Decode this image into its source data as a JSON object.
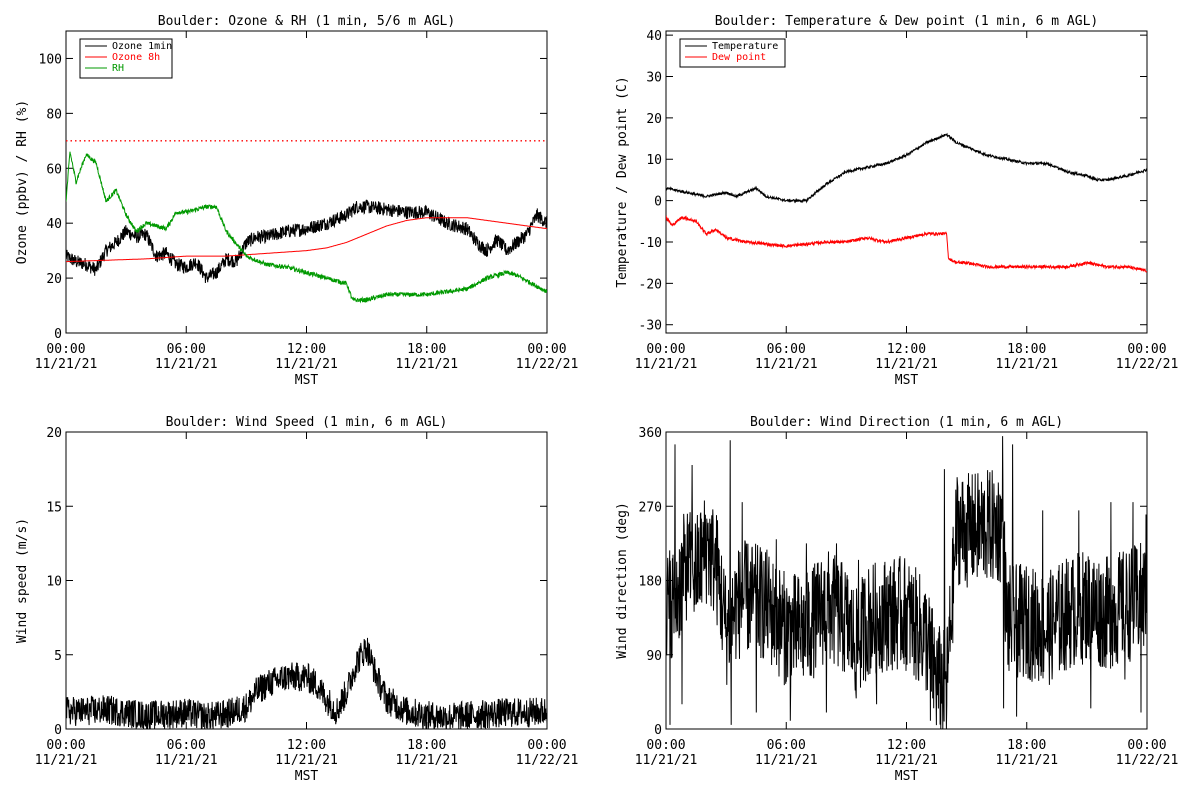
{
  "chart_data": [
    {
      "type": "line",
      "title": "Boulder: Ozone & RH (1 min, 5/6 m AGL)",
      "ylabel": "Ozone (ppbv) / RH (%)",
      "xlabel": "MST",
      "ylim": [
        0,
        110
      ],
      "yticks": [
        "0",
        "20",
        "40",
        "60",
        "80",
        "100"
      ],
      "yticks_values": [
        0,
        20,
        40,
        60,
        80,
        100
      ],
      "xticks": [
        {
          "time": "00:00",
          "date": "11/21/21"
        },
        {
          "time": "06:00",
          "date": "11/21/21"
        },
        {
          "time": "12:00",
          "date": "11/21/21"
        },
        {
          "time": "18:00",
          "date": "11/21/21"
        },
        {
          "time": "00:00",
          "date": "11/22/21"
        }
      ],
      "xlim_hours": [
        0,
        24
      ],
      "legend": {
        "placement": "top-left",
        "entries": [
          "Ozone 1min",
          "Ozone 8h",
          "RH"
        ]
      },
      "reference_line": {
        "value": 70,
        "color": "#ff0000",
        "style": "dotted"
      },
      "series": [
        {
          "name": "Ozone 1min",
          "color": "#000000",
          "noise": 2.5,
          "x": [
            0,
            0.5,
            1,
            1.5,
            2,
            2.5,
            3,
            3.5,
            4,
            4.5,
            5,
            5.5,
            6,
            6.5,
            7,
            7.5,
            8,
            8.5,
            9,
            9.5,
            10,
            11,
            12,
            13,
            14,
            14.5,
            15,
            16,
            17,
            18,
            19,
            20,
            20.5,
            21,
            21.5,
            22,
            22.5,
            23,
            23.5,
            24
          ],
          "y": [
            28,
            26,
            25,
            23,
            30,
            33,
            37,
            35,
            36,
            28,
            29,
            25,
            24,
            26,
            20,
            22,
            27,
            26,
            33,
            35,
            35,
            37,
            38,
            40,
            43,
            46,
            46,
            45,
            44,
            44,
            40,
            38,
            33,
            30,
            34,
            30,
            33,
            36,
            43,
            40
          ]
        },
        {
          "name": "Ozone 8h",
          "color": "#ff0000",
          "noise": 0,
          "x": [
            0,
            2,
            4,
            6,
            8,
            9,
            10,
            11,
            12,
            13,
            14,
            15,
            16,
            17,
            18,
            19,
            20,
            21,
            22,
            23,
            24
          ],
          "y": [
            26,
            26.5,
            27,
            28,
            28,
            28.5,
            29,
            29.5,
            30,
            31,
            33,
            36,
            39,
            41,
            42,
            42,
            42,
            41,
            40,
            39,
            38
          ]
        },
        {
          "name": "RH",
          "color": "#009900",
          "noise": 0.8,
          "x": [
            0,
            0.2,
            0.5,
            1,
            1.5,
            2,
            2.5,
            3,
            3.5,
            4,
            5,
            5.5,
            6,
            7,
            7.5,
            8,
            9,
            10,
            11,
            12,
            13,
            14,
            14.3,
            15,
            16,
            17,
            18,
            19,
            20,
            21,
            22,
            22.5,
            23,
            24
          ],
          "y": [
            48,
            66,
            55,
            65,
            62,
            48,
            52,
            43,
            37,
            40,
            38,
            44,
            44,
            46,
            46,
            37,
            28,
            25,
            24,
            22,
            20,
            18,
            12,
            12,
            14,
            14,
            14,
            15,
            16,
            20,
            22,
            21,
            19,
            15
          ]
        }
      ]
    },
    {
      "type": "line",
      "title": "Boulder: Temperature & Dew point (1 min, 6 m AGL)",
      "ylabel": "Temperature / Dew point (C)",
      "xlabel": "MST",
      "ylim": [
        -32,
        41
      ],
      "yticks": [
        "-30",
        "-20",
        "-10",
        "0",
        "10",
        "20",
        "30",
        "40"
      ],
      "yticks_values": [
        -30,
        -20,
        -10,
        0,
        10,
        20,
        30,
        40
      ],
      "xticks": [
        {
          "time": "00:00",
          "date": "11/21/21"
        },
        {
          "time": "06:00",
          "date": "11/21/21"
        },
        {
          "time": "12:00",
          "date": "11/21/21"
        },
        {
          "time": "18:00",
          "date": "11/21/21"
        },
        {
          "time": "00:00",
          "date": "11/22/21"
        }
      ],
      "xlim_hours": [
        0,
        24
      ],
      "legend": {
        "placement": "top-left",
        "entries": [
          "Temperature",
          "Dew point"
        ]
      },
      "series": [
        {
          "name": "Temperature",
          "color": "#000000",
          "noise": 0.3,
          "x": [
            0,
            1,
            2,
            3,
            3.5,
            4,
            4.5,
            5,
            6,
            7,
            7.5,
            8,
            9,
            10,
            11,
            12,
            13,
            13.5,
            14,
            14.5,
            15,
            16,
            17,
            18,
            19,
            20,
            21,
            21.5,
            22,
            23,
            24
          ],
          "y": [
            3,
            2,
            1,
            2,
            1,
            2,
            3,
            1,
            0,
            0,
            2,
            4,
            7,
            8,
            9,
            11,
            14,
            15,
            16,
            14,
            13,
            11,
            10,
            9,
            9,
            7,
            6,
            5,
            5,
            6,
            7.5
          ]
        },
        {
          "name": "Dew point",
          "color": "#ff0000",
          "noise": 0.35,
          "x": [
            0,
            0.3,
            0.8,
            1.5,
            2,
            2.5,
            3,
            4,
            6,
            8,
            9,
            10,
            11,
            12,
            13,
            14,
            14.1,
            14.5,
            15,
            16,
            17,
            18,
            19,
            20,
            21,
            22,
            23,
            24
          ],
          "y": [
            -4,
            -6,
            -4,
            -5,
            -8,
            -7,
            -9,
            -10,
            -11,
            -10,
            -10,
            -9,
            -10,
            -9,
            -8,
            -8,
            -14,
            -15,
            -15,
            -16,
            -16,
            -16,
            -16,
            -16,
            -15,
            -16,
            -16,
            -17
          ]
        }
      ]
    },
    {
      "type": "line",
      "title": "Boulder: Wind Speed (1 min, 6 m AGL)",
      "ylabel": "Wind speed (m/s)",
      "xlabel": "MST",
      "ylim": [
        0,
        20
      ],
      "yticks": [
        "0",
        "5",
        "10",
        "15",
        "20"
      ],
      "yticks_values": [
        0,
        5,
        10,
        15,
        20
      ],
      "xticks": [
        {
          "time": "00:00",
          "date": "11/21/21"
        },
        {
          "time": "06:00",
          "date": "11/21/21"
        },
        {
          "time": "12:00",
          "date": "11/21/21"
        },
        {
          "time": "18:00",
          "date": "11/21/21"
        },
        {
          "time": "00:00",
          "date": "11/22/21"
        }
      ],
      "xlim_hours": [
        0,
        24
      ],
      "series": [
        {
          "name": "",
          "color": "#000000",
          "noise": 1.0,
          "x": [
            0,
            1,
            2,
            3,
            4,
            5,
            6,
            7,
            8,
            9,
            9.5,
            10,
            11,
            12,
            12.5,
            13,
            13.5,
            14,
            14.5,
            15,
            15.5,
            16,
            17,
            18,
            19,
            20,
            21,
            22,
            23,
            24
          ],
          "y": [
            1.2,
            1.2,
            1.3,
            1.1,
            0.9,
            1.0,
            1.1,
            0.8,
            1.0,
            1.5,
            2.5,
            3.0,
            3.5,
            3.5,
            3.0,
            2.0,
            1.2,
            2.5,
            4.5,
            5.5,
            3.5,
            2.0,
            1.2,
            0.9,
            0.8,
            0.9,
            1.0,
            1.1,
            1.1,
            1.2
          ]
        }
      ]
    },
    {
      "type": "line",
      "title": "Boulder: Wind Direction (1 min, 6 m AGL)",
      "ylabel": "Wind direction (deg)",
      "xlabel": "MST",
      "ylim": [
        0,
        360
      ],
      "yticks": [
        "0",
        "90",
        "180",
        "270",
        "360"
      ],
      "yticks_values": [
        0,
        90,
        180,
        270,
        360
      ],
      "xticks": [
        {
          "time": "00:00",
          "date": "11/21/21"
        },
        {
          "time": "06:00",
          "date": "11/21/21"
        },
        {
          "time": "12:00",
          "date": "11/21/21"
        },
        {
          "time": "18:00",
          "date": "11/21/21"
        },
        {
          "time": "00:00",
          "date": "11/22/21"
        }
      ],
      "xlim_hours": [
        0,
        24
      ],
      "series": [
        {
          "name": "",
          "color": "#000000",
          "noise": 70,
          "x": [
            0,
            0.5,
            1,
            1.5,
            2,
            2.5,
            3,
            3.5,
            4,
            5,
            6,
            7,
            8,
            9,
            9.5,
            10,
            11,
            12,
            13,
            13.5,
            14,
            14.5,
            15,
            16,
            16.8,
            17,
            18,
            19,
            20,
            21,
            22,
            23,
            24
          ],
          "y": [
            150,
            160,
            200,
            190,
            220,
            200,
            120,
            150,
            160,
            150,
            120,
            120,
            150,
            130,
            100,
            130,
            140,
            140,
            110,
            60,
            50,
            245,
            240,
            245,
            245,
            130,
            130,
            120,
            140,
            150,
            140,
            150,
            160
          ],
          "spikes": [
            {
              "x": 0.2,
              "y": 5
            },
            {
              "x": 0.45,
              "y": 345
            },
            {
              "x": 0.8,
              "y": 30
            },
            {
              "x": 1.3,
              "y": 320
            },
            {
              "x": 2.1,
              "y": 250
            },
            {
              "x": 3.2,
              "y": 350
            },
            {
              "x": 3.25,
              "y": 5
            },
            {
              "x": 3.8,
              "y": 275
            },
            {
              "x": 4.5,
              "y": 20
            },
            {
              "x": 5.5,
              "y": 230
            },
            {
              "x": 6.2,
              "y": 10
            },
            {
              "x": 7.0,
              "y": 225
            },
            {
              "x": 8.0,
              "y": 20
            },
            {
              "x": 8.5,
              "y": 225
            },
            {
              "x": 9.6,
              "y": 205
            },
            {
              "x": 10.5,
              "y": 30
            },
            {
              "x": 13.2,
              "y": 10
            },
            {
              "x": 13.9,
              "y": 315
            },
            {
              "x": 14.0,
              "y": 0
            },
            {
              "x": 16.8,
              "y": 355
            },
            {
              "x": 16.85,
              "y": 25
            },
            {
              "x": 17.3,
              "y": 345
            },
            {
              "x": 17.5,
              "y": 15
            },
            {
              "x": 18.8,
              "y": 265
            },
            {
              "x": 20.6,
              "y": 265
            },
            {
              "x": 21.2,
              "y": 25
            },
            {
              "x": 22.2,
              "y": 275
            },
            {
              "x": 22.9,
              "y": 60
            },
            {
              "x": 23.3,
              "y": 275
            },
            {
              "x": 23.7,
              "y": 20
            },
            {
              "x": 23.95,
              "y": 260
            }
          ]
        }
      ]
    }
  ]
}
